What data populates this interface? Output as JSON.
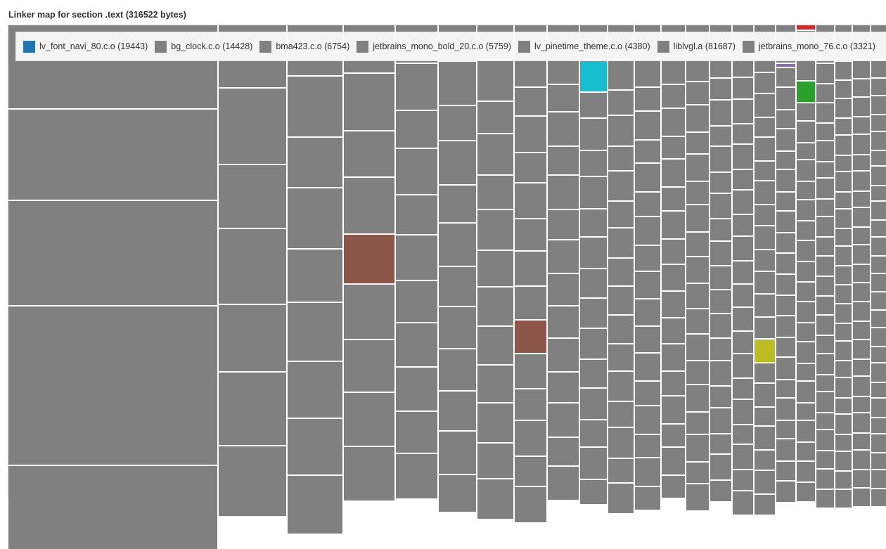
{
  "title": "Linker map for section .text (316522 bytes)",
  "chart_data": {
    "type": "treemap",
    "title": "Linker map for section .text (316522 bytes)",
    "legend_position": "top",
    "default_color": "#808080",
    "legend": [
      {
        "label": "lv_font_navi_80.c.o (19443)",
        "name": "lv_font_navi_80.c.o",
        "value": 19443,
        "color": "#1f77b4"
      },
      {
        "label": "bg_clock.c.o (14428)",
        "name": "bg_clock.c.o",
        "value": 14428,
        "color": "#808080"
      },
      {
        "label": "bma423.c.o (6754)",
        "name": "bma423.c.o",
        "value": 6754,
        "color": "#808080"
      },
      {
        "label": "jetbrains_mono_bold_20.c.o (5759)",
        "name": "jetbrains_mono_bold_20.c.o",
        "value": 5759,
        "color": "#808080"
      },
      {
        "label": "lv_pinetime_theme.c.o (4380)",
        "name": "lv_pinetime_theme.c.o",
        "value": 4380,
        "color": "#808080"
      },
      {
        "label": "liblvgl.a (81687)",
        "name": "liblvgl.a",
        "value": 81687,
        "color": "#808080"
      },
      {
        "label": "jetbrains_mono_76.c.o (3321)",
        "name": "jetbrains_mono_76.c.o",
        "value": 3321,
        "color": "#808080"
      }
    ],
    "highlight_colors": [
      "#17becf",
      "#8c564b",
      "#bcbd22",
      "#2ca02c",
      "#d62728",
      "#9467bd"
    ]
  }
}
